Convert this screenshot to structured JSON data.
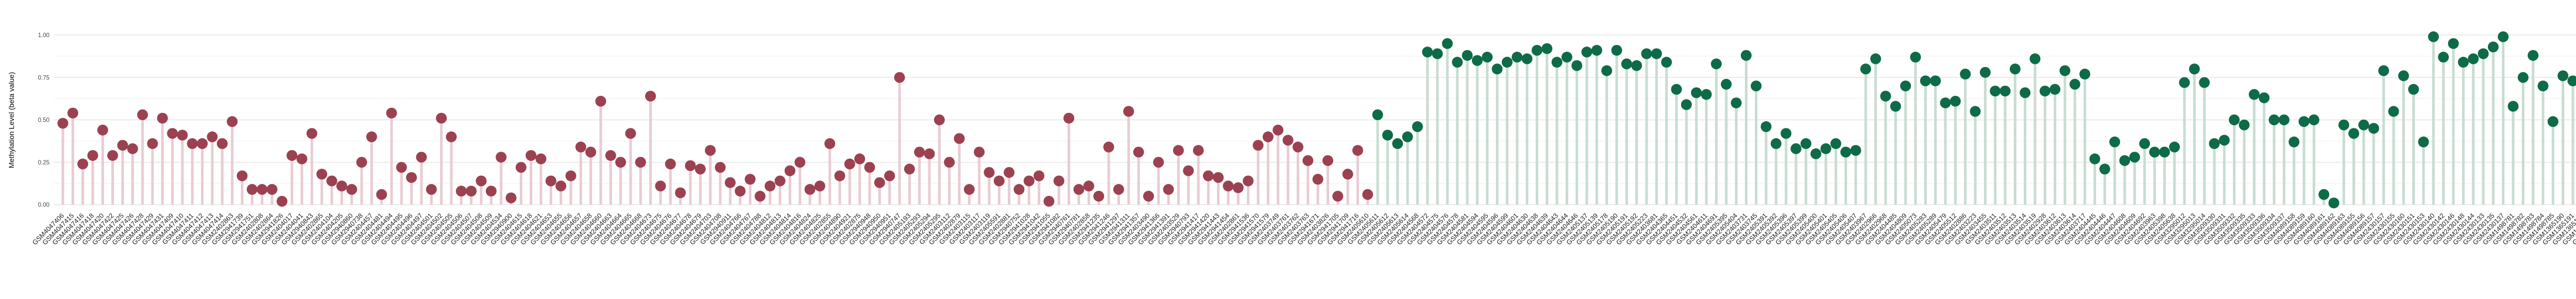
{
  "chart_data": {
    "type": "lollipop",
    "title": "",
    "xlabel": "",
    "ylabel": "Methylation Level (beta value)",
    "ylim": [
      0,
      1
    ],
    "yticks": [
      0,
      0.25,
      0.5,
      0.75,
      1
    ],
    "ytick_labels": [
      "0.00",
      "0.25",
      "0.50",
      "0.75",
      "1.00"
    ],
    "grid": "horizontal major + minor, light gray, white background",
    "legend_position": "none",
    "x_tick_rotation_deg": -45,
    "groups": [
      {
        "name": "group-red-low-methylation",
        "point_color": "#9c4150",
        "stem_color": "#e8ccd2",
        "count": 132
      },
      {
        "name": "group-green-high-methylation",
        "point_color": "#0e6b47",
        "stem_color": "#c8dcd2",
        "count": 124
      }
    ],
    "point_format": [
      "gsm_sample_id",
      "beta_value",
      "group_index"
    ],
    "points": [
      [
        "GSM4047406",
        0.48,
        0
      ],
      [
        "GSM4047415",
        0.54,
        0
      ],
      [
        "GSM4047416",
        0.24,
        0
      ],
      [
        "GSM4047418",
        0.29,
        0
      ],
      [
        "GSM4047420",
        0.44,
        0
      ],
      [
        "GSM4047422",
        0.29,
        0
      ],
      [
        "GSM4047425",
        0.35,
        0
      ],
      [
        "GSM4047426",
        0.33,
        0
      ],
      [
        "GSM4047428",
        0.53,
        0
      ],
      [
        "GSM4047429",
        0.36,
        0
      ],
      [
        "GSM4047431",
        0.51,
        0
      ],
      [
        "GSM4047409",
        0.42,
        0
      ],
      [
        "GSM4047410",
        0.41,
        0
      ],
      [
        "GSM4047411",
        0.36,
        0
      ],
      [
        "GSM4047412",
        0.36,
        0
      ],
      [
        "GSM4047413",
        0.4,
        0
      ],
      [
        "GSM4047414",
        0.36,
        0
      ],
      [
        "GSM2402863",
        0.49,
        0
      ],
      [
        "GSM2941739",
        0.17,
        0
      ],
      [
        "GSM2941751",
        0.09,
        0
      ],
      [
        "GSM2402808",
        0.09,
        0
      ],
      [
        "GSM2402864",
        0.09,
        0
      ],
      [
        "GSM2941826",
        0.02,
        0
      ],
      [
        "GSM2404017",
        0.29,
        0
      ],
      [
        "GSM2404041",
        0.27,
        0
      ],
      [
        "GSM2940843",
        0.42,
        0
      ],
      [
        "GSM2402865",
        0.18,
        0
      ],
      [
        "GSM2404104",
        0.14,
        0
      ],
      [
        "GSM2404205",
        0.11,
        0
      ],
      [
        "GSM2940860",
        0.09,
        0
      ],
      [
        "GSM2940738",
        0.25,
        0
      ],
      [
        "GSM2404457",
        0.4,
        0
      ],
      [
        "GSM2404481",
        0.06,
        0
      ],
      [
        "GSM2404494",
        0.54,
        0
      ],
      [
        "GSM2404495",
        0.22,
        0
      ],
      [
        "GSM2404496",
        0.16,
        0
      ],
      [
        "GSM2404497",
        0.28,
        0
      ],
      [
        "GSM2404501",
        0.09,
        0
      ],
      [
        "GSM2404502",
        0.51,
        0
      ],
      [
        "GSM2404505",
        0.4,
        0
      ],
      [
        "GSM2404506",
        0.08,
        0
      ],
      [
        "GSM2404507",
        0.08,
        0
      ],
      [
        "GSM2404508",
        0.14,
        0
      ],
      [
        "GSM2404509",
        0.08,
        0
      ],
      [
        "GSM2404534",
        0.28,
        0
      ],
      [
        "GSM2940900",
        0.04,
        0
      ],
      [
        "GSM2404615",
        0.22,
        0
      ],
      [
        "GSM2404618",
        0.29,
        0
      ],
      [
        "GSM2404621",
        0.27,
        0
      ],
      [
        "GSM2404653",
        0.14,
        0
      ],
      [
        "GSM2404655",
        0.11,
        0
      ],
      [
        "GSM2404656",
        0.17,
        0
      ],
      [
        "GSM2404657",
        0.34,
        0
      ],
      [
        "GSM2404658",
        0.31,
        0
      ],
      [
        "GSM2404660",
        0.61,
        0
      ],
      [
        "GSM2404663",
        0.29,
        0
      ],
      [
        "GSM2404664",
        0.25,
        0
      ],
      [
        "GSM2404665",
        0.42,
        0
      ],
      [
        "GSM2404668",
        0.25,
        0
      ],
      [
        "GSM2404673",
        0.64,
        0
      ],
      [
        "GSM2404675",
        0.11,
        0
      ],
      [
        "GSM2404676",
        0.24,
        0
      ],
      [
        "GSM2404677",
        0.07,
        0
      ],
      [
        "GSM2404678",
        0.23,
        0
      ],
      [
        "GSM2404679",
        0.21,
        0
      ],
      [
        "GSM2404703",
        0.32,
        0
      ],
      [
        "GSM2404708",
        0.22,
        0
      ],
      [
        "GSM2940911",
        0.13,
        0
      ],
      [
        "GSM2404766",
        0.08,
        0
      ],
      [
        "GSM2404767",
        0.15,
        0
      ],
      [
        "GSM2404788",
        0.05,
        0
      ],
      [
        "GSM2404812",
        0.11,
        0
      ],
      [
        "GSM2404813",
        0.14,
        0
      ],
      [
        "GSM2404814",
        0.2,
        0
      ],
      [
        "GSM2404816",
        0.25,
        0
      ],
      [
        "GSM2404824",
        0.09,
        0
      ],
      [
        "GSM2404825",
        0.11,
        0
      ],
      [
        "GSM2402855",
        0.36,
        0
      ],
      [
        "GSM2404890",
        0.17,
        0
      ],
      [
        "GSM2404921",
        0.24,
        0
      ],
      [
        "GSM2402875",
        0.27,
        0
      ],
      [
        "GSM2940948",
        0.22,
        0
      ],
      [
        "GSM2940950",
        0.13,
        0
      ],
      [
        "GSM2940951",
        0.17,
        0
      ],
      [
        "GSM2940747",
        0.75,
        0
      ],
      [
        "GSM2405193",
        0.21,
        0
      ],
      [
        "GSM2405293",
        0.31,
        0
      ],
      [
        "GSM2405294",
        0.3,
        0
      ],
      [
        "GSM2405295",
        0.5,
        0
      ],
      [
        "GSM2403112",
        0.25,
        0
      ],
      [
        "GSM2402879",
        0.39,
        0
      ],
      [
        "GSM2403115",
        0.09,
        0
      ],
      [
        "GSM2403117",
        0.31,
        0
      ],
      [
        "GSM2403119",
        0.19,
        0
      ],
      [
        "GSM2405591",
        0.14,
        0
      ],
      [
        "GSM2402881",
        0.19,
        0
      ],
      [
        "GSM2940752",
        0.09,
        0
      ],
      [
        "GSM2941028",
        0.14,
        0
      ],
      [
        "GSM2941042",
        0.17,
        0
      ],
      [
        "GSM2941055",
        0.02,
        0
      ],
      [
        "GSM2941082",
        0.14,
        0
      ],
      [
        "GSM2940761",
        0.51,
        0
      ],
      [
        "GSM2940781",
        0.09,
        0
      ],
      [
        "GSM2402858",
        0.11,
        0
      ],
      [
        "GSM2941235",
        0.05,
        0
      ],
      [
        "GSM2941246",
        0.34,
        0
      ],
      [
        "GSM2941297",
        0.09,
        0
      ],
      [
        "GSM2941311",
        0.55,
        0
      ],
      [
        "GSM2941357",
        0.31,
        0
      ],
      [
        "GSM2403490",
        0.05,
        0
      ],
      [
        "GSM2941366",
        0.25,
        0
      ],
      [
        "GSM2941391",
        0.09,
        0
      ],
      [
        "GSM2403529",
        0.32,
        0
      ],
      [
        "GSM2940793",
        0.2,
        0
      ],
      [
        "GSM2941417",
        0.32,
        0
      ],
      [
        "GSM2941420",
        0.17,
        0
      ],
      [
        "GSM2941443",
        0.16,
        0
      ],
      [
        "GSM2941454",
        0.11,
        0
      ],
      [
        "GSM2402861",
        0.1,
        0
      ],
      [
        "GSM2941536",
        0.14,
        0
      ],
      [
        "GSM2941570",
        0.35,
        0
      ],
      [
        "GSM2941579",
        0.4,
        0
      ],
      [
        "GSM2403749",
        0.44,
        0
      ],
      [
        "GSM2403761",
        0.38,
        0
      ],
      [
        "GSM2403762",
        0.34,
        0
      ],
      [
        "GSM2403763",
        0.26,
        0
      ],
      [
        "GSM2941671",
        0.15,
        0
      ],
      [
        "GSM2403826",
        0.26,
        0
      ],
      [
        "GSM2941705",
        0.05,
        0
      ],
      [
        "GSM2941709",
        0.18,
        0
      ],
      [
        "GSM2941716",
        0.32,
        0
      ],
      [
        "GSM2405610",
        0.06,
        0
      ],
      [
        "GSM2405611",
        0.53,
        1
      ],
      [
        "GSM2405612",
        0.41,
        1
      ],
      [
        "GSM2405613",
        0.36,
        1
      ],
      [
        "GSM2405614",
        0.4,
        1
      ],
      [
        "GSM2404568",
        0.46,
        1
      ],
      [
        "GSM2404572",
        0.9,
        1
      ],
      [
        "GSM2404575",
        0.89,
        1
      ],
      [
        "GSM2404576",
        0.95,
        1
      ],
      [
        "GSM2404578",
        0.84,
        1
      ],
      [
        "GSM2404581",
        0.88,
        1
      ],
      [
        "GSM2404594",
        0.85,
        1
      ],
      [
        "GSM2404595",
        0.87,
        1
      ],
      [
        "GSM2404596",
        0.8,
        1
      ],
      [
        "GSM2404599",
        0.84,
        1
      ],
      [
        "GSM2404601",
        0.87,
        1
      ],
      [
        "GSM2404630",
        0.86,
        1
      ],
      [
        "GSM2404638",
        0.91,
        1
      ],
      [
        "GSM2404639",
        0.92,
        1
      ],
      [
        "GSM2404643",
        0.84,
        1
      ],
      [
        "GSM2404644",
        0.87,
        1
      ],
      [
        "GSM2404646",
        0.82,
        1
      ],
      [
        "GSM2405137",
        0.9,
        1
      ],
      [
        "GSM2405139",
        0.91,
        1
      ],
      [
        "GSM2405178",
        0.79,
        1
      ],
      [
        "GSM2405190",
        0.91,
        1
      ],
      [
        "GSM2405191",
        0.83,
        1
      ],
      [
        "GSM2405192",
        0.82,
        1
      ],
      [
        "GSM2405223",
        0.89,
        1
      ],
      [
        "GSM2403681",
        0.89,
        1
      ],
      [
        "GSM2404365",
        0.84,
        1
      ],
      [
        "GSM2404451",
        0.68,
        1
      ],
      [
        "GSM2404532",
        0.59,
        1
      ],
      [
        "GSM2404561",
        0.66,
        1
      ],
      [
        "GSM2404611",
        0.65,
        1
      ],
      [
        "GSM2404691",
        0.83,
        1
      ],
      [
        "GSM2405395",
        0.71,
        1
      ],
      [
        "GSM2405404",
        0.6,
        1
      ],
      [
        "GSM2403731",
        0.88,
        1
      ],
      [
        "GSM2403745",
        0.7,
        1
      ],
      [
        "GSM2405391",
        0.46,
        1
      ],
      [
        "GSM2405392",
        0.36,
        1
      ],
      [
        "GSM2405396",
        0.42,
        1
      ],
      [
        "GSM2405397",
        0.33,
        1
      ],
      [
        "GSM2405399",
        0.36,
        1
      ],
      [
        "GSM2405400",
        0.3,
        1
      ],
      [
        "GSM2405401",
        0.33,
        1
      ],
      [
        "GSM2405405",
        0.36,
        1
      ],
      [
        "GSM2405406",
        0.31,
        1
      ],
      [
        "GSM2405407",
        0.32,
        1
      ],
      [
        "GSM2403967",
        0.8,
        1
      ],
      [
        "GSM2402966",
        0.86,
        1
      ],
      [
        "GSM2402968",
        0.64,
        1
      ],
      [
        "GSM2404485",
        0.58,
        1
      ],
      [
        "GSM2404809",
        0.7,
        1
      ],
      [
        "GSM2405073",
        0.87,
        1
      ],
      [
        "GSM2405283",
        0.73,
        1
      ],
      [
        "GSM2405289",
        0.73,
        1
      ],
      [
        "GSM2405479",
        0.6,
        1
      ],
      [
        "GSM2405512",
        0.61,
        1
      ],
      [
        "GSM2402886",
        0.77,
        1
      ],
      [
        "GSM2403223",
        0.55,
        1
      ],
      [
        "GSM2403455",
        0.78,
        1
      ],
      [
        "GSM2403511",
        0.67,
        1
      ],
      [
        "GSM2403512",
        0.67,
        1
      ],
      [
        "GSM2403513",
        0.8,
        1
      ],
      [
        "GSM2403514",
        0.66,
        1
      ],
      [
        "GSM2403519",
        0.86,
        1
      ],
      [
        "GSM2402928",
        0.67,
        1
      ],
      [
        "GSM2403612",
        0.68,
        1
      ],
      [
        "GSM2403613",
        0.79,
        1
      ],
      [
        "GSM2403614",
        0.71,
        1
      ],
      [
        "GSM2403717",
        0.77,
        1
      ],
      [
        "GSM2404445",
        0.27,
        1
      ],
      [
        "GSM2404446",
        0.21,
        1
      ],
      [
        "GSM2404447",
        0.37,
        1
      ],
      [
        "GSM2404608",
        0.26,
        1
      ],
      [
        "GSM2404609",
        0.28,
        1
      ],
      [
        "GSM2404692",
        0.36,
        1
      ],
      [
        "GSM2403963",
        0.31,
        1
      ],
      [
        "GSM2405398",
        0.31,
        1
      ],
      [
        "GSM2405638",
        0.34,
        1
      ],
      [
        "GSM3295012",
        0.72,
        1
      ],
      [
        "GSM3295013",
        0.8,
        1
      ],
      [
        "GSM3295014",
        0.72,
        1
      ],
      [
        "GSM3509330",
        0.36,
        1
      ],
      [
        "GSM3509331",
        0.38,
        1
      ],
      [
        "GSM3509332",
        0.5,
        1
      ],
      [
        "GSM3509335",
        0.47,
        1
      ],
      [
        "GSM3509333",
        0.65,
        1
      ],
      [
        "GSM3509336",
        0.63,
        1
      ],
      [
        "GSM3509334",
        0.5,
        1
      ],
      [
        "GSM3509337",
        0.5,
        1
      ],
      [
        "GSM4089158",
        0.37,
        1
      ],
      [
        "GSM4089159",
        0.49,
        1
      ],
      [
        "GSM4089160",
        0.5,
        1
      ],
      [
        "GSM4089161",
        0.06,
        1
      ],
      [
        "GSM4089162",
        0.01,
        1
      ],
      [
        "GSM4089163",
        0.47,
        1
      ],
      [
        "GSM4089155",
        0.42,
        1
      ],
      [
        "GSM4089156",
        0.47,
        1
      ],
      [
        "GSM4089157",
        0.45,
        1
      ],
      [
        "GSM2430157",
        0.79,
        1
      ],
      [
        "GSM2430155",
        0.55,
        1
      ],
      [
        "GSM2430160",
        0.76,
        1
      ],
      [
        "GSM2430151",
        0.68,
        1
      ],
      [
        "GSM2430153",
        0.37,
        1
      ],
      [
        "GSM2430140",
        0.99,
        1
      ],
      [
        "GSM2430142",
        0.87,
        1
      ],
      [
        "GSM2430146",
        0.95,
        1
      ],
      [
        "GSM2430148",
        0.84,
        1
      ],
      [
        "GSM2430144",
        0.86,
        1
      ],
      [
        "GSM2430133",
        0.89,
        1
      ],
      [
        "GSM2430135",
        0.93,
        1
      ],
      [
        "GSM2430137",
        0.99,
        1
      ],
      [
        "GSM1498781",
        0.58,
        1
      ],
      [
        "GSM1498782",
        0.75,
        1
      ],
      [
        "GSM1498783",
        0.88,
        1
      ],
      [
        "GSM1498784",
        0.7,
        1
      ],
      [
        "GSM1498785",
        0.49,
        1
      ],
      [
        "GSM1365190",
        0.76,
        1
      ],
      [
        "GSM1365191",
        0.73,
        1
      ],
      [
        "GSM1365192",
        0.86,
        1
      ],
      [
        "GSM1365193",
        0.69,
        1
      ],
      [
        "GSM1365194",
        0.88,
        1
      ]
    ]
  },
  "colors": {
    "background": "#ffffff",
    "grid_major": "#e8e8e8",
    "grid_minor": "#f4f4f4",
    "tick_text": "#474747",
    "xlabel_text": "#1f1f1f"
  }
}
